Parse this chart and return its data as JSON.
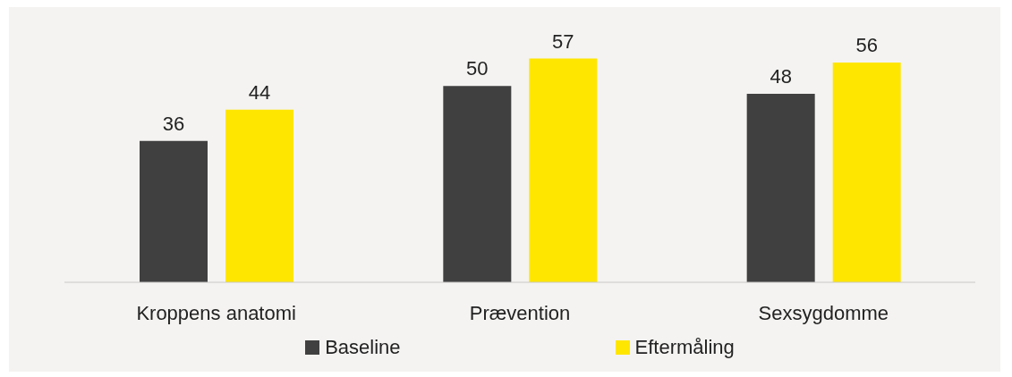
{
  "chart_data": {
    "type": "bar",
    "categories": [
      "Kroppens anatomi",
      "Prævention",
      "Sexsygdomme"
    ],
    "series": [
      {
        "name": "Baseline",
        "color": "#404040",
        "values": [
          36,
          50,
          48
        ]
      },
      {
        "name": "Eftermåling",
        "color": "#ffe600",
        "values": [
          44,
          57,
          56
        ]
      }
    ],
    "data_labels": true,
    "grid": false,
    "legend": "bottom"
  }
}
